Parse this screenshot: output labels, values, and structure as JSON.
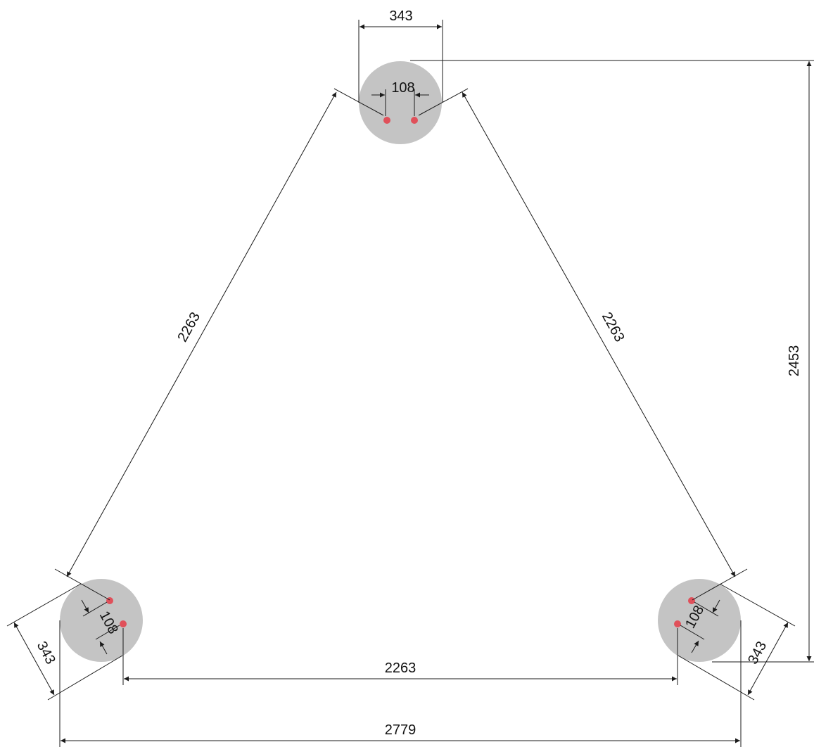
{
  "diagram": {
    "columns": [
      {
        "name": "column-top",
        "diameter": 343,
        "anchor_spacing": 108
      },
      {
        "name": "column-bottom-left",
        "diameter": 343,
        "anchor_spacing": 108
      },
      {
        "name": "column-bottom-right",
        "diameter": 343,
        "anchor_spacing": 108
      }
    ],
    "dimensions": {
      "top_column_diameter": "343",
      "top_anchor_spacing": "108",
      "left_side": "2263",
      "right_side": "2263",
      "overall_height": "2453",
      "anchor_center_span": "2263",
      "overall_width": "2779",
      "left_column_diameter": "343",
      "left_anchor_spacing": "108",
      "right_column_diameter": "343",
      "right_anchor_spacing": "108"
    },
    "colors": {
      "column_fill": "#c4c4c4",
      "anchor": "#e0505a",
      "line": "#1a1a1a"
    }
  }
}
